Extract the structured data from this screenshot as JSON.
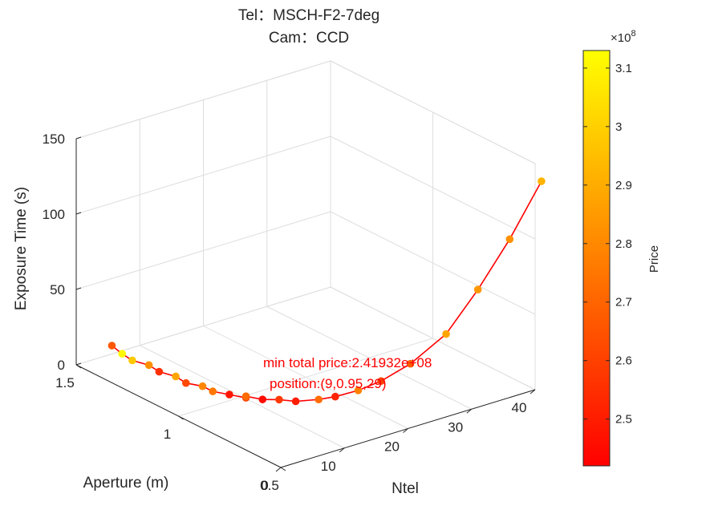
{
  "chart_data": {
    "type": "line3d-scatter",
    "title_lines": [
      "Tel：MSCH-F2-7deg",
      "Cam：CCD"
    ],
    "xlabel": "Ntel",
    "ylabel": "Aperture (m)",
    "zlabel": "Exposure Time (s)",
    "xlim": [
      0,
      40
    ],
    "ylim": [
      0.5,
      1.5
    ],
    "zlim": [
      0,
      150
    ],
    "x_ticks": [
      "0",
      "10",
      "20",
      "30",
      "40"
    ],
    "y_ticks": [
      "0.5",
      "1",
      "1.5"
    ],
    "z_ticks": [
      "0",
      "50",
      "100",
      "150"
    ],
    "line_color": "#ff0000",
    "grid": true,
    "colorbar": {
      "label": "Price",
      "exponent_text": "×10",
      "exponent_power": "8",
      "range": [
        2.42,
        3.13
      ],
      "ticks": [
        "2.5",
        "2.6",
        "2.7",
        "2.8",
        "2.9",
        "3",
        "3.1"
      ],
      "colormap": "autumn",
      "color_low": "#ff0000",
      "color_high": "#ffff00"
    },
    "points": [
      {
        "ntel": 4,
        "aperture": 1.45,
        "exposure": 11,
        "price": 2.66
      },
      {
        "ntel": 4,
        "aperture": 1.4,
        "exposure": 9,
        "price": 3.11
      },
      {
        "ntel": 4,
        "aperture": 1.35,
        "exposure": 8,
        "price": 2.98
      },
      {
        "ntel": 5,
        "aperture": 1.3,
        "exposure": 7,
        "price": 2.82
      },
      {
        "ntel": 5,
        "aperture": 1.25,
        "exposure": 6,
        "price": 2.55
      },
      {
        "ntel": 6,
        "aperture": 1.2,
        "exposure": 5,
        "price": 2.88
      },
      {
        "ntel": 6,
        "aperture": 1.15,
        "exposure": 4,
        "price": 2.62
      },
      {
        "ntel": 7,
        "aperture": 1.1,
        "exposure": 4,
        "price": 2.8
      },
      {
        "ntel": 7,
        "aperture": 1.05,
        "exposure": 4,
        "price": 2.75
      },
      {
        "ntel": 8,
        "aperture": 1.0,
        "exposure": 4,
        "price": 2.48
      },
      {
        "ntel": 9,
        "aperture": 0.95,
        "exposure": 4,
        "price": 2.62
      },
      {
        "ntel": 9,
        "aperture": 0.95,
        "exposure": 5,
        "price": 2.72
      },
      {
        "ntel": 10,
        "aperture": 0.9,
        "exposure": 5,
        "price": 2.45
      },
      {
        "ntel": 11,
        "aperture": 0.85,
        "exposure": 7,
        "price": 2.58
      },
      {
        "ntel": 12,
        "aperture": 0.8,
        "exposure": 8,
        "price": 2.5
      },
      {
        "ntel": 14,
        "aperture": 0.75,
        "exposure": 10,
        "price": 2.72
      },
      {
        "ntel": 15,
        "aperture": 0.7,
        "exposure": 14,
        "price": 2.52
      },
      {
        "ntel": 17,
        "aperture": 0.65,
        "exposure": 19,
        "price": 2.78
      },
      {
        "ntel": 19,
        "aperture": 0.6,
        "exposure": 26,
        "price": 2.6
      },
      {
        "ntel": 22,
        "aperture": 0.55,
        "exposure": 37,
        "price": 2.68
      },
      {
        "ntel": 26,
        "aperture": 0.5,
        "exposure": 55,
        "price": 2.88
      },
      {
        "ntel": 31,
        "aperture": 0.5,
        "exposure": 78,
        "price": 2.84
      },
      {
        "ntel": 36,
        "aperture": 0.5,
        "exposure": 105,
        "price": 2.82
      },
      {
        "ntel": 41,
        "aperture": 0.5,
        "exposure": 137,
        "price": 2.92
      }
    ],
    "annotation": {
      "line1": "min total price:2.41932e+08",
      "line2": "position:(9,0.95,29)",
      "color": "#ff0000"
    }
  }
}
